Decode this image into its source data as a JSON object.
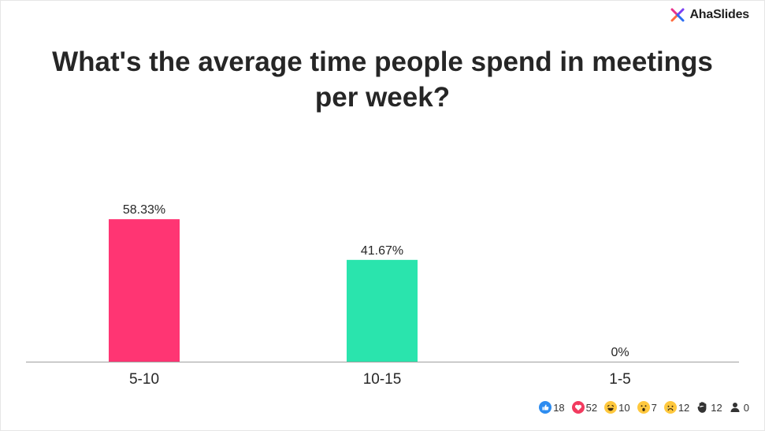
{
  "brand": {
    "name": "AhaSlides"
  },
  "colors": {
    "bar_1": "#ff3573",
    "bar_2": "#2ae4ad",
    "bar_3": "#f5a623",
    "axis": "#9e9e9e"
  },
  "chart_data": {
    "type": "bar",
    "title": "What's the average time people spend in meetings per week?",
    "categories": [
      "5-10",
      "10-15",
      "1-5"
    ],
    "values": [
      58.33,
      41.67,
      0
    ],
    "value_labels": [
      "58.33%",
      "41.67%",
      "0%"
    ],
    "ylim": [
      0,
      100
    ],
    "grid": false,
    "legend": "none"
  },
  "reactions": [
    {
      "icon": "thumbs-up-icon",
      "count": "18"
    },
    {
      "icon": "heart-icon",
      "count": "52"
    },
    {
      "icon": "laughing-face-icon",
      "count": "10"
    },
    {
      "icon": "surprised-face-icon",
      "count": "7"
    },
    {
      "icon": "sad-face-icon",
      "count": "12"
    },
    {
      "icon": "raised-hand-icon",
      "count": "12"
    },
    {
      "icon": "participant-icon",
      "count": "0"
    }
  ]
}
